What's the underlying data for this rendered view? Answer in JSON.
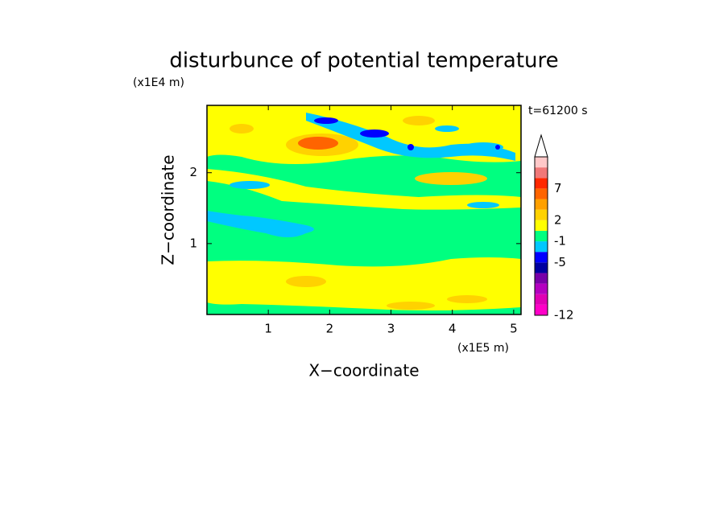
{
  "chart_data": {
    "type": "contour",
    "title": "disturbunce of potential temperature",
    "xlabel": "X−coordinate",
    "ylabel": "Z−coordinate",
    "xunit": "(x1E5 m)",
    "yunit": "(x1E4 m)",
    "annotation": "t=61200 s",
    "xlim": [
      0,
      5.12
    ],
    "ylim": [
      0,
      2.95
    ],
    "xticks": [
      1,
      2,
      3,
      4,
      5
    ],
    "yticks": [
      1,
      2
    ],
    "colorbar": {
      "colors": [
        "#ff00c8",
        "#e000b4",
        "#b400c0",
        "#7800a8",
        "#0000a0",
        "#0000ff",
        "#00c8ff",
        "#00ff80",
        "#ffff00",
        "#ffd200",
        "#ffa000",
        "#ff6400",
        "#ff2800",
        "#f07878",
        "#ffc8c8"
      ],
      "labels": [
        -12,
        null,
        null,
        null,
        null,
        -5,
        null,
        -1,
        null,
        2,
        null,
        null,
        7,
        null,
        null,
        null
      ]
    }
  }
}
